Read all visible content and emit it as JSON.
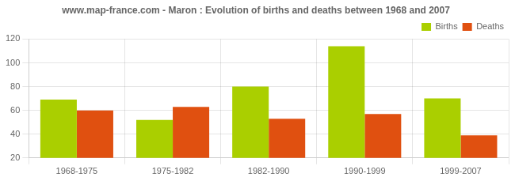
{
  "chart_data": {
    "type": "bar",
    "title": "www.map-france.com - Maron : Evolution of births and deaths between 1968 and 2007",
    "categories": [
      "1968-1975",
      "1975-1982",
      "1982-1990",
      "1990-1999",
      "1999-2007"
    ],
    "series": [
      {
        "name": "Births",
        "color": "#aacf00",
        "values": [
          69,
          52,
          80,
          114,
          70
        ]
      },
      {
        "name": "Deaths",
        "color": "#e05010",
        "values": [
          60,
          63,
          53,
          57,
          39
        ]
      }
    ],
    "ylim": [
      20,
      120
    ],
    "yticks": [
      20,
      40,
      60,
      80,
      100,
      120
    ],
    "grid": true,
    "legend": "upper right"
  }
}
